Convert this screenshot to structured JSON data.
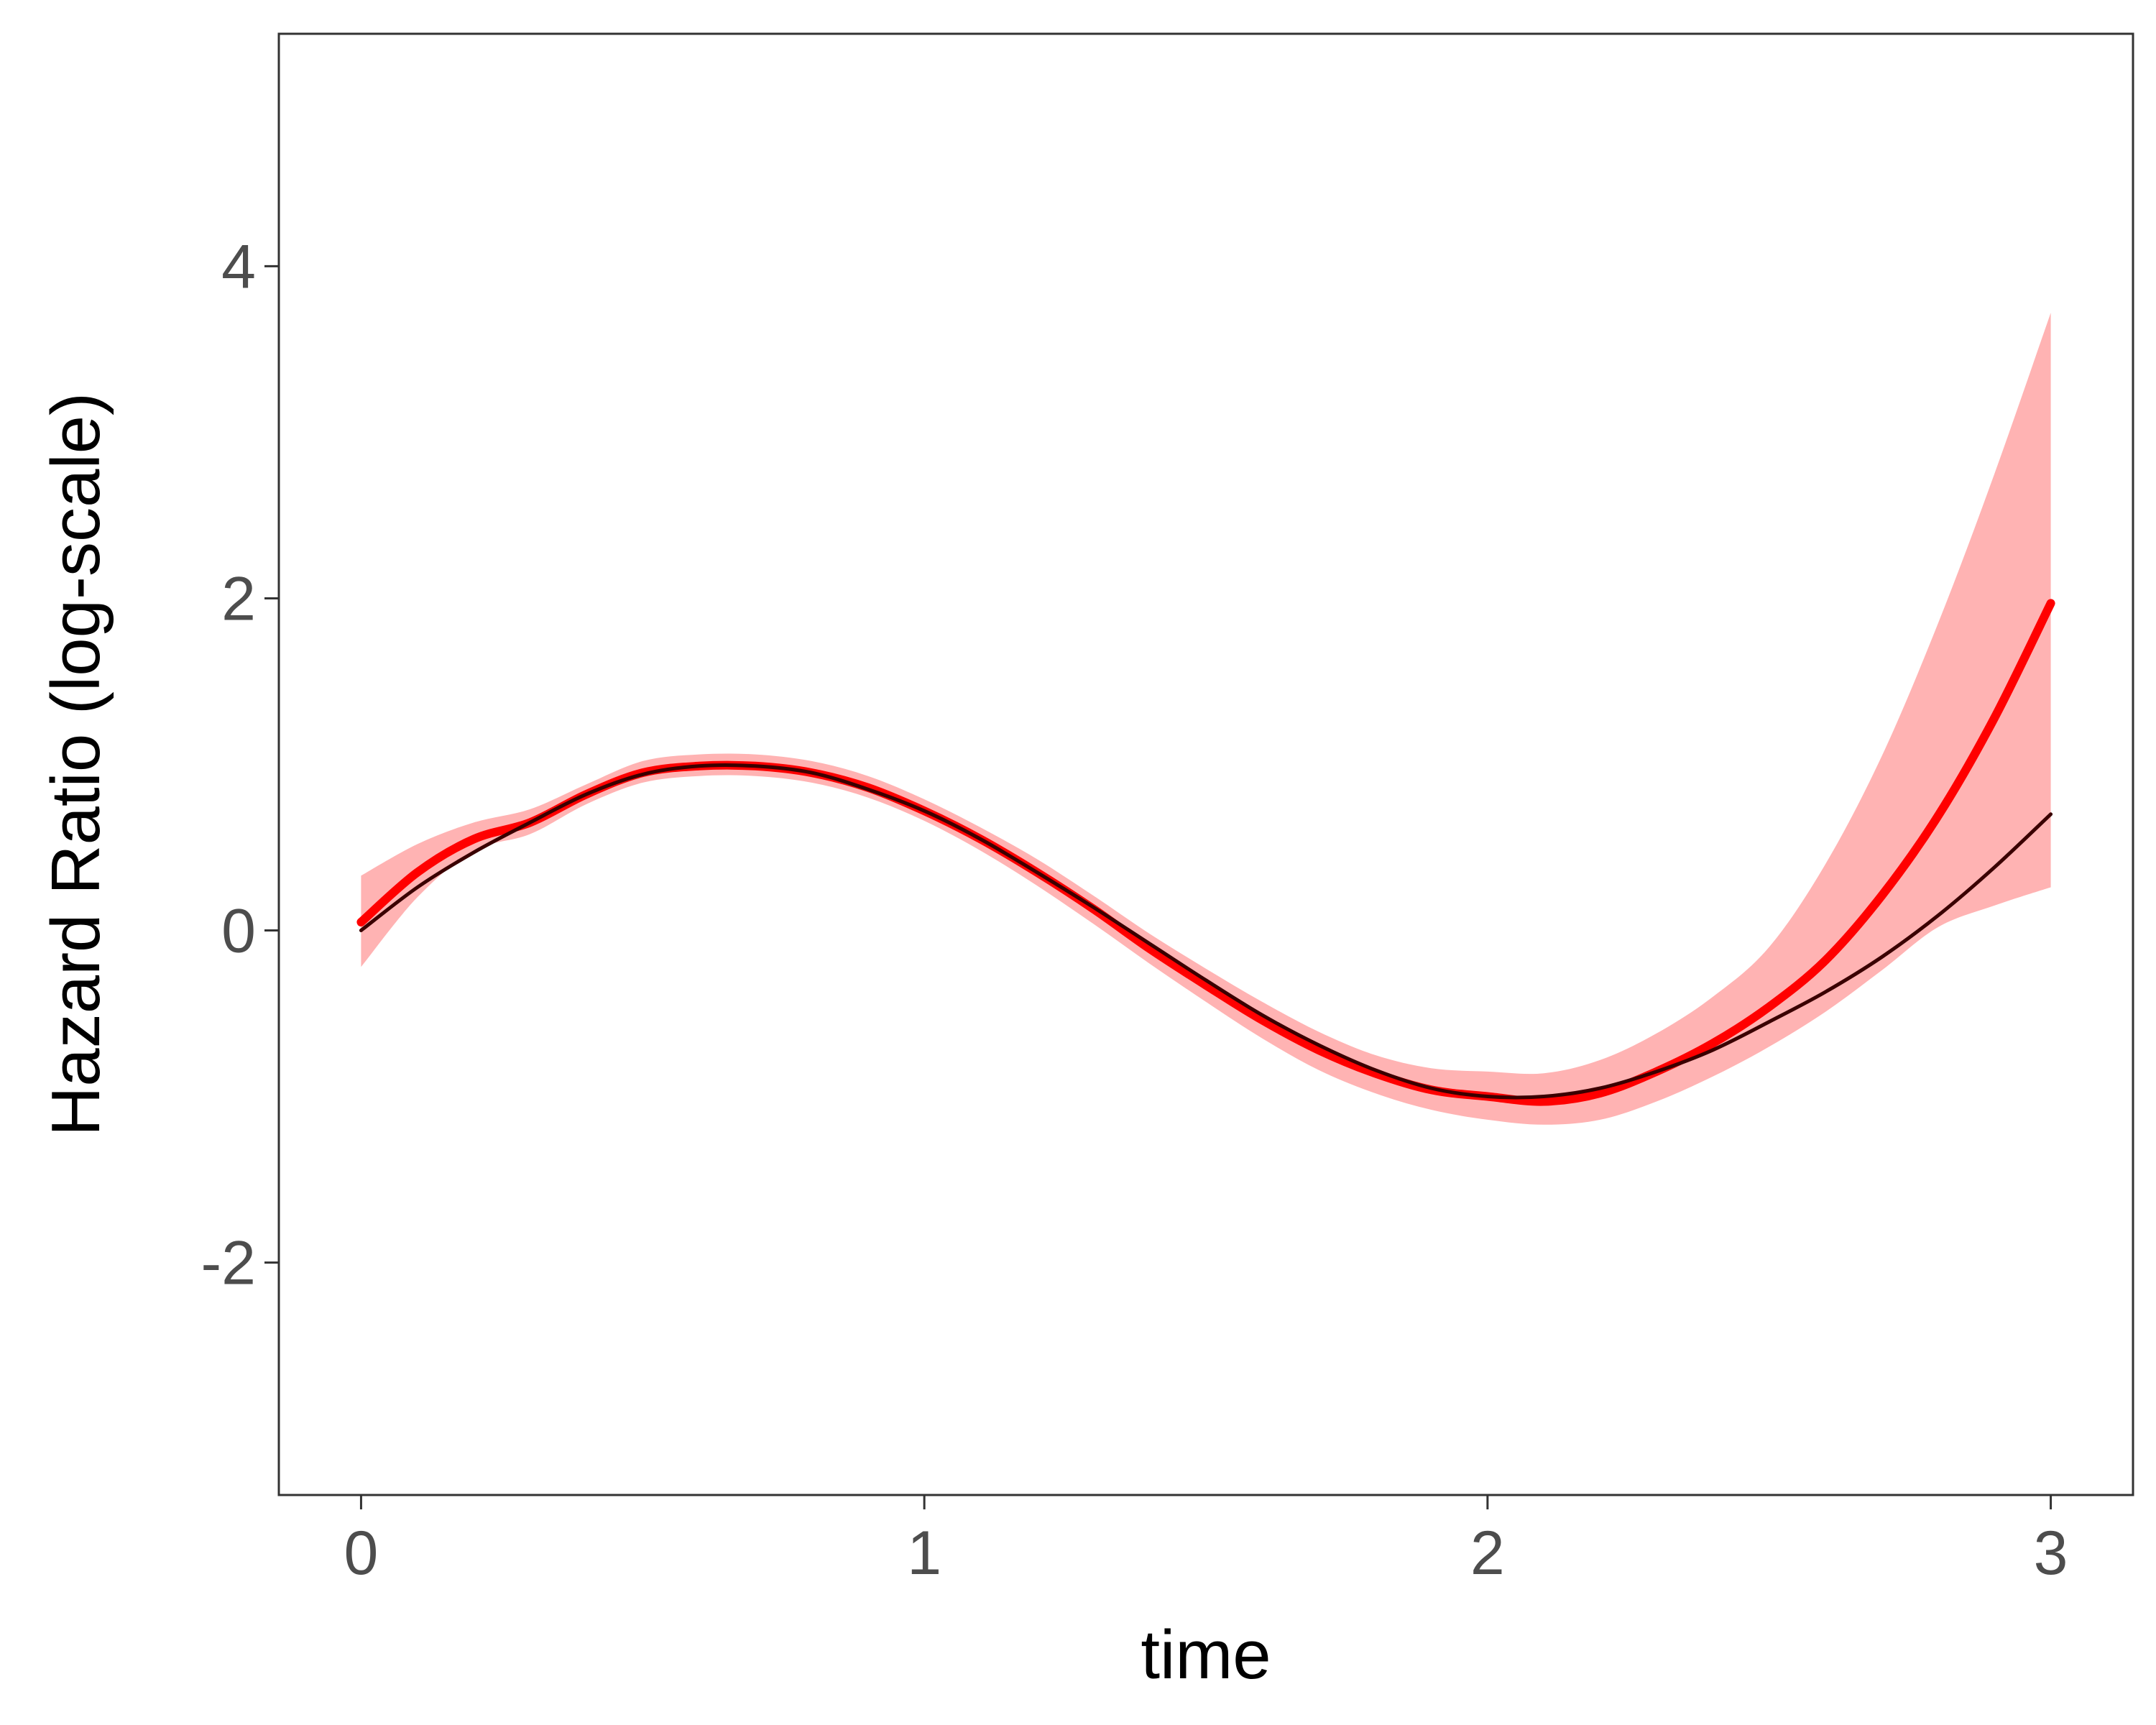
{
  "chart_data": {
    "type": "line",
    "title": "",
    "xlabel": "time",
    "ylabel": "Hazard Ratio (log-scale)",
    "xlim": [
      -0.146,
      3.146
    ],
    "ylim": [
      -3.4,
      5.4
    ],
    "xticks": [
      0,
      1,
      2,
      3
    ],
    "yticks": [
      -2,
      0,
      2,
      4
    ],
    "grid": false,
    "legend": "none",
    "x": [
      0,
      0.1,
      0.2,
      0.3,
      0.4,
      0.5,
      0.6,
      0.7,
      0.8,
      0.9,
      1.0,
      1.1,
      1.2,
      1.3,
      1.4,
      1.5,
      1.6,
      1.7,
      1.8,
      1.9,
      2.0,
      2.1,
      2.2,
      2.3,
      2.4,
      2.5,
      2.6,
      2.7,
      2.8,
      2.9,
      3.0
    ],
    "series": [
      {
        "color": "#ff0000",
        "values": [
          0.05,
          0.35,
          0.55,
          0.65,
          0.82,
          0.95,
          0.99,
          0.99,
          0.95,
          0.86,
          0.72,
          0.55,
          0.35,
          0.13,
          -0.11,
          -0.33,
          -0.54,
          -0.72,
          -0.86,
          -0.96,
          -1.0,
          -1.03,
          -0.98,
          -0.85,
          -0.68,
          -0.46,
          -0.18,
          0.21,
          0.69,
          1.28,
          1.97
        ],
        "lower": [
          -0.22,
          0.2,
          0.48,
          0.58,
          0.76,
          0.89,
          0.93,
          0.93,
          0.89,
          0.8,
          0.66,
          0.48,
          0.27,
          0.04,
          -0.2,
          -0.43,
          -0.65,
          -0.84,
          -0.98,
          -1.08,
          -1.14,
          -1.17,
          -1.14,
          -1.03,
          -0.88,
          -0.7,
          -0.49,
          -0.24,
          0.02,
          0.15,
          0.26
        ],
        "upper": [
          0.33,
          0.52,
          0.65,
          0.73,
          0.88,
          1.02,
          1.06,
          1.06,
          1.02,
          0.93,
          0.79,
          0.62,
          0.43,
          0.21,
          -0.02,
          -0.23,
          -0.43,
          -0.61,
          -0.75,
          -0.83,
          -0.85,
          -0.86,
          -0.78,
          -0.62,
          -0.4,
          -0.1,
          0.4,
          1.05,
          1.85,
          2.75,
          3.72
        ],
        "band_color": "#ffb3b3"
      },
      {
        "color": "#3a0000",
        "values": [
          0.0,
          0.26,
          0.47,
          0.65,
          0.82,
          0.94,
          0.99,
          0.99,
          0.95,
          0.85,
          0.72,
          0.55,
          0.35,
          0.14,
          -0.08,
          -0.3,
          -0.51,
          -0.69,
          -0.84,
          -0.95,
          -1.0,
          -1.0,
          -0.95,
          -0.85,
          -0.72,
          -0.55,
          -0.37,
          -0.16,
          0.09,
          0.38,
          0.7
        ]
      }
    ]
  }
}
